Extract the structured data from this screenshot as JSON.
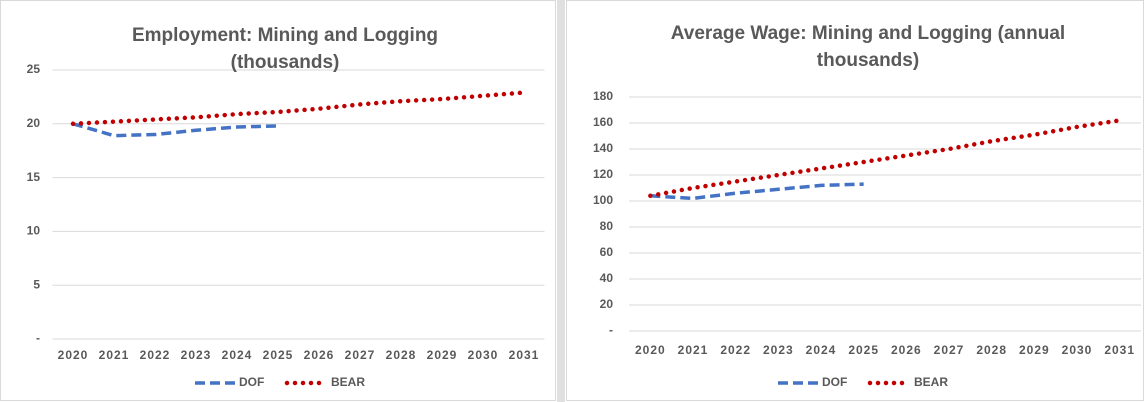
{
  "chart_data": [
    {
      "type": "line",
      "title": "Employment: Mining and Logging (thousands)",
      "categories": [
        "2020",
        "2021",
        "2022",
        "2023",
        "2024",
        "2025",
        "2026",
        "2027",
        "2028",
        "2029",
        "2030",
        "2031"
      ],
      "series": [
        {
          "name": "DOF",
          "color": "#4472c4",
          "style": "dashed",
          "values": [
            20.0,
            18.9,
            19.0,
            19.4,
            19.7,
            19.8,
            null,
            null,
            null,
            null,
            null,
            null
          ]
        },
        {
          "name": "BEAR",
          "color": "#c00000",
          "style": "dotted",
          "values": [
            20.0,
            20.2,
            20.4,
            20.6,
            20.9,
            21.1,
            21.4,
            21.8,
            22.1,
            22.3,
            22.6,
            22.9
          ]
        }
      ],
      "ylim": [
        0,
        25
      ],
      "yticks": [
        {
          "value": 0,
          "label": "-"
        },
        5,
        10,
        15,
        20,
        25
      ],
      "grid": true,
      "legend": "bottom"
    },
    {
      "type": "line",
      "title": "Average Wage: Mining and Logging (annual thousands)",
      "categories": [
        "2020",
        "2021",
        "2022",
        "2023",
        "2024",
        "2025",
        "2026",
        "2027",
        "2028",
        "2029",
        "2030",
        "2031"
      ],
      "series": [
        {
          "name": "DOF",
          "color": "#4472c4",
          "style": "dashed",
          "values": [
            104,
            102,
            106,
            109,
            112,
            113,
            null,
            null,
            null,
            null,
            null,
            null
          ]
        },
        {
          "name": "BEAR",
          "color": "#c00000",
          "style": "dotted",
          "values": [
            104,
            110,
            115,
            120,
            125,
            130,
            135,
            140,
            146,
            151,
            157,
            162
          ]
        }
      ],
      "ylim": [
        0,
        180
      ],
      "yticks": [
        {
          "value": 0,
          "label": "-"
        },
        20,
        40,
        60,
        80,
        100,
        120,
        140,
        160,
        180
      ],
      "grid": true,
      "legend": "bottom"
    }
  ]
}
